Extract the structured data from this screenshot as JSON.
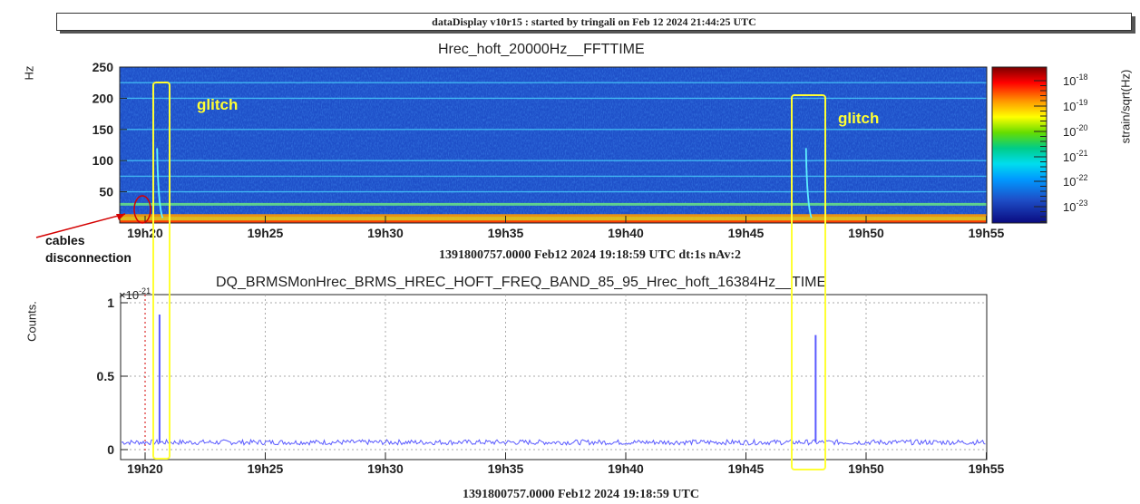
{
  "header": {
    "banner": "dataDisplay v10r15 : started by tringali on Feb 12 2024 21:44:25 UTC"
  },
  "colors": {
    "spectrogram_background": "#1e4fc8",
    "timeseries_line": "#5a5aff",
    "annotation_box": "#ffff33",
    "annotation_arrow": "#d40000",
    "grid": "#aaaaaa"
  },
  "chart_data": [
    {
      "type": "heatmap",
      "title": "Hrec_hoft_20000Hz__FFTTIME",
      "ylabel": "Hz",
      "xlabel": "1391800757.0000 Feb12 2024 19:18:59 UTC dt:1s nAv:2",
      "x_ticks": [
        "19h20",
        "19h25",
        "19h30",
        "19h35",
        "19h40",
        "19h45",
        "19h50",
        "19h55"
      ],
      "y_ticks": [
        50,
        100,
        150,
        200,
        250
      ],
      "ylim": [
        0,
        250
      ],
      "colorbar": {
        "label": "strain/sqrt(Hz)",
        "ticks": [
          "10-18",
          "10-19",
          "10-20",
          "10-21",
          "10-22",
          "10-23"
        ],
        "tick_mantissa": "10",
        "tick_exponents": [
          "-18",
          "-19",
          "-20",
          "-21",
          "-22",
          "-23"
        ],
        "scale": "log"
      },
      "spectral_lines_hz": [
        12,
        30,
        50,
        75,
        100,
        150,
        200,
        225
      ],
      "glitch_times": [
        "19h20.5",
        "19h47.5"
      ],
      "annotations": [
        {
          "text": "glitch"
        },
        {
          "text": "glitch"
        },
        {
          "text": "cables disconnection",
          "lines": [
            "cables",
            "disconnection"
          ]
        }
      ]
    },
    {
      "type": "line",
      "title": "DQ_BRMSMonHrec_BRMS_HREC_HOFT_FREQ_BAND_85_95_Hrec_hoft_16384Hz__TIME",
      "ylabel": "Counts.",
      "xlabel": "1391800757.0000 Feb12 2024 19:18:59 UTC",
      "y_multiplier": "×10-21",
      "y_multiplier_base": "×10",
      "y_multiplier_exp": "-21",
      "x_ticks": [
        "19h20",
        "19h25",
        "19h30",
        "19h35",
        "19h40",
        "19h45",
        "19h50",
        "19h55"
      ],
      "y_ticks": [
        "0",
        "0.5",
        "1"
      ],
      "ylim": [
        -0.05,
        1.0
      ],
      "grid": true,
      "baseline": 0.05,
      "spikes": [
        {
          "x": "19h20.6",
          "value": 0.92
        },
        {
          "x": "19h47.9",
          "value": 0.78
        }
      ]
    }
  ]
}
